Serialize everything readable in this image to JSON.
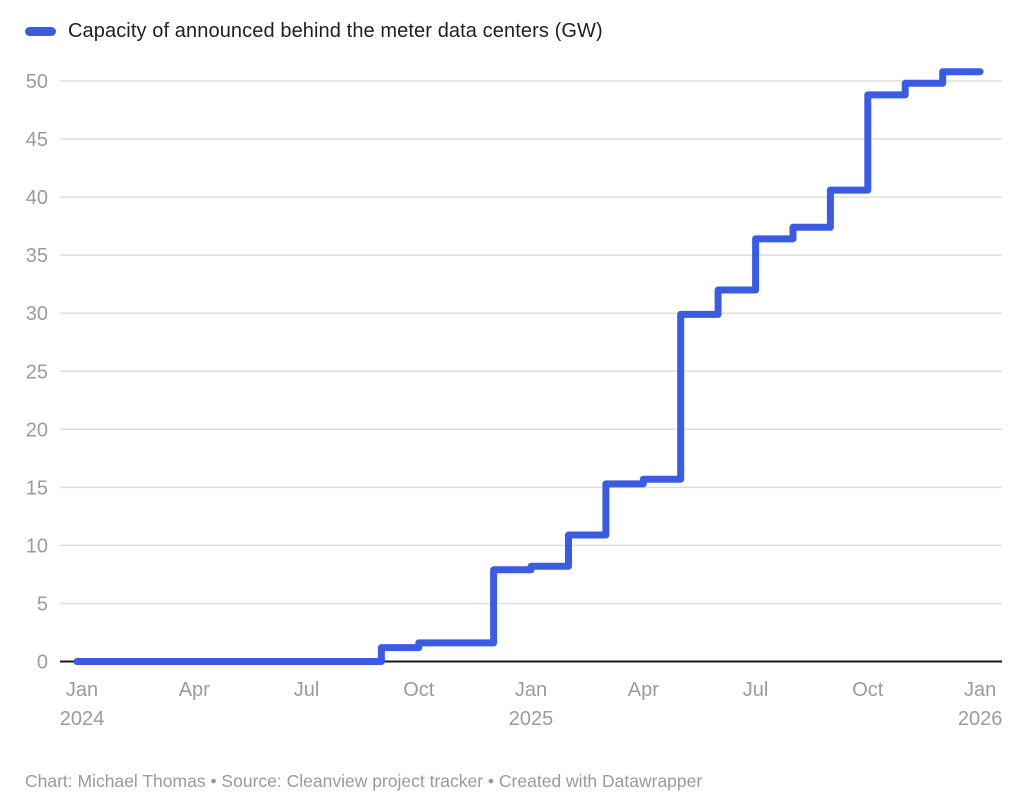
{
  "legend": {
    "label": "Capacity of announced behind the meter data centers (GW)"
  },
  "footer": {
    "text": "Chart: Michael Thomas • Source: Cleanview project tracker • Created with Datawrapper"
  },
  "chart_data": {
    "type": "line",
    "subtype": "step-after",
    "title": "Capacity of announced behind the meter data centers (GW)",
    "ylabel": "GW",
    "xlabel": "",
    "ylim": [
      0,
      52
    ],
    "grid": true,
    "legend_position": "top-left",
    "categories": [
      "Jan 2024",
      "Feb 2024",
      "Mar 2024",
      "Apr 2024",
      "May 2024",
      "Jun 2024",
      "Jul 2024",
      "Aug 2024",
      "Sep 2024",
      "Oct 2024",
      "Nov 2024",
      "Dec 2024",
      "Jan 2025",
      "Feb 2025",
      "Mar 2025",
      "Apr 2025",
      "May 2025",
      "Jun 2025",
      "Jul 2025",
      "Aug 2025",
      "Sep 2025",
      "Oct 2025",
      "Nov 2025",
      "Dec 2025",
      "Jan 2026"
    ],
    "series": [
      {
        "name": "Capacity of announced behind the meter data centers (GW)",
        "values": [
          0,
          0,
          0,
          0,
          0,
          0,
          0,
          0,
          1.2,
          1.6,
          1.6,
          7.9,
          8.2,
          10.9,
          15.3,
          15.7,
          29.9,
          32.0,
          36.4,
          37.4,
          40.6,
          48.8,
          49.8,
          50.8,
          50.8
        ]
      }
    ],
    "yticks": [
      0,
      5,
      10,
      15,
      20,
      25,
      30,
      35,
      40,
      45,
      50
    ],
    "xticks": [
      {
        "label": "Jan",
        "year": "2024",
        "m": 0
      },
      {
        "label": "Apr",
        "year": "",
        "m": 3
      },
      {
        "label": "Jul",
        "year": "",
        "m": 6
      },
      {
        "label": "Oct",
        "year": "",
        "m": 9
      },
      {
        "label": "Jan",
        "year": "2025",
        "m": 12
      },
      {
        "label": "Apr",
        "year": "",
        "m": 15
      },
      {
        "label": "Jul",
        "year": "",
        "m": 18
      },
      {
        "label": "Oct",
        "year": "",
        "m": 21
      },
      {
        "label": "Jan",
        "year": "2026",
        "m": 24
      }
    ],
    "colors": {
      "line": "#3b5ce0",
      "grid": "#dedede",
      "axis": "#1a1a1a",
      "tick_label": "#9b9b9b",
      "title_text": "#1f1f1f",
      "footer_text": "#9a9a9a"
    }
  }
}
